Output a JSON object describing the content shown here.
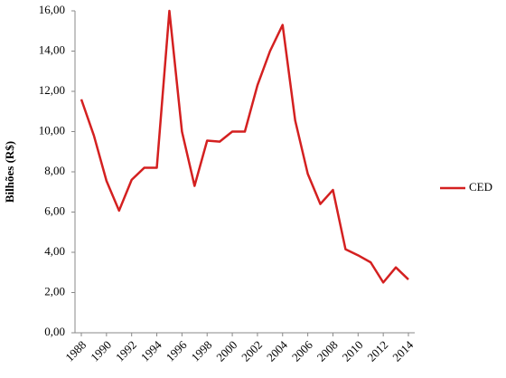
{
  "chart_data": {
    "type": "line",
    "y_label": "Bilhões (R$)",
    "x": [
      1988,
      1989,
      1990,
      1991,
      1992,
      1993,
      1994,
      1995,
      1996,
      1997,
      1998,
      1999,
      2000,
      2001,
      2002,
      2003,
      2004,
      2005,
      2006,
      2007,
      2008,
      2009,
      2010,
      2011,
      2012,
      2013,
      2014
    ],
    "series": [
      {
        "name": "CED",
        "color": "#d42020",
        "values": [
          11.6,
          9.8,
          7.55,
          6.07,
          7.6,
          8.2,
          8.2,
          16.0,
          10.0,
          7.3,
          9.55,
          9.5,
          10.0,
          10.0,
          12.3,
          14.0,
          15.3,
          10.55,
          7.9,
          6.4,
          7.1,
          4.15,
          3.85,
          3.5,
          2.5,
          3.25,
          2.65
        ]
      }
    ],
    "xlim": [
      1988,
      2014
    ],
    "xticks": [
      1988,
      1990,
      1992,
      1994,
      1996,
      1998,
      2000,
      2002,
      2004,
      2006,
      2008,
      2010,
      2012,
      2014
    ],
    "ylim": [
      0,
      16
    ],
    "yticks": [
      {
        "value": 0,
        "label": "0,00"
      },
      {
        "value": 2,
        "label": "2,00"
      },
      {
        "value": 4,
        "label": "4,00"
      },
      {
        "value": 6,
        "label": "6,00"
      },
      {
        "value": 8,
        "label": "8,00"
      },
      {
        "value": 10,
        "label": "10,00"
      },
      {
        "value": 12,
        "label": "12,00"
      },
      {
        "value": 14,
        "label": "14,00"
      },
      {
        "value": 16,
        "label": "16,00"
      }
    ],
    "grid": false,
    "legend": "right"
  }
}
